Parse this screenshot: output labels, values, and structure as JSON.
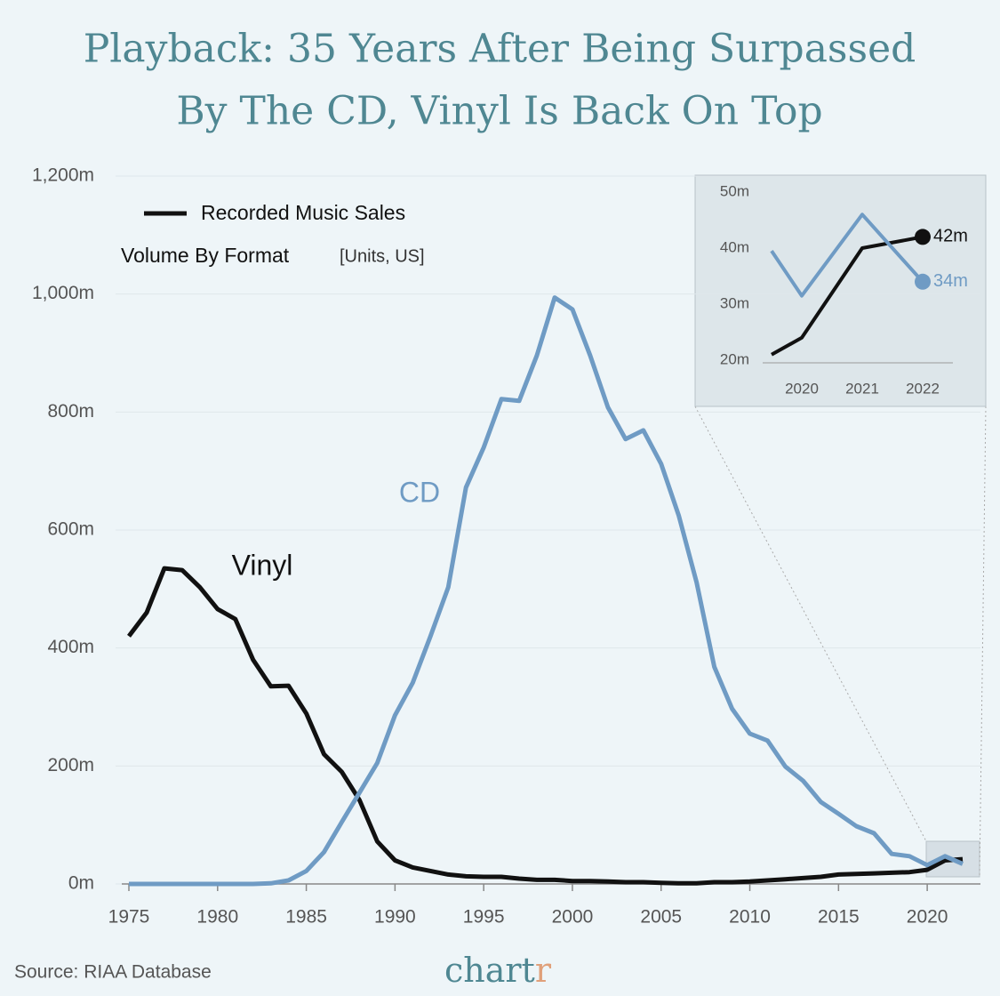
{
  "title": [
    "Playback: 35 Years After Being Surpassed",
    "By The CD, Vinyl Is Back On Top"
  ],
  "source": "Source: RIAA Database",
  "logo": {
    "text": "chart",
    "accent": "r"
  },
  "chart_data": [
    {
      "type": "line",
      "legend_label": "Recorded Music Sales",
      "subtitle": "Volume By Format",
      "units": "[Units, US]",
      "x": [
        1975,
        1976,
        1977,
        1978,
        1979,
        1980,
        1981,
        1982,
        1983,
        1984,
        1985,
        1986,
        1987,
        1988,
        1989,
        1990,
        1991,
        1992,
        1993,
        1994,
        1995,
        1996,
        1997,
        1998,
        1999,
        2000,
        2001,
        2002,
        2003,
        2004,
        2005,
        2006,
        2007,
        2008,
        2009,
        2010,
        2011,
        2012,
        2013,
        2014,
        2015,
        2016,
        2017,
        2018,
        2019,
        2020,
        2021,
        2022
      ],
      "series": [
        {
          "name": "Vinyl",
          "color": "#111111",
          "values": [
            420,
            460,
            535,
            532,
            503,
            466,
            449,
            380,
            335,
            336,
            289,
            220,
            190,
            142,
            72,
            40,
            28,
            22,
            16,
            13,
            12,
            12,
            9,
            7,
            7,
            5,
            5,
            4,
            3,
            3,
            2,
            1,
            1,
            3,
            3,
            4,
            6,
            8,
            10,
            12,
            16,
            17,
            18,
            19,
            20,
            24,
            40,
            42
          ]
        },
        {
          "name": "CD",
          "color": "#6f9bc4",
          "values": [
            0,
            0,
            0,
            0,
            0,
            0,
            0,
            0,
            1,
            6,
            22,
            54,
            105,
            155,
            205,
            286,
            341,
            420,
            503,
            672,
            740,
            822,
            819,
            896,
            994,
            974,
            896,
            808,
            754,
            769,
            712,
            624,
            511,
            368,
            297,
            255,
            243,
            199,
            175,
            139,
            119,
            98,
            86,
            51,
            47,
            32,
            47,
            34
          ]
        }
      ],
      "xlim": [
        1975,
        2023
      ],
      "xticks": [
        1975,
        1980,
        1985,
        1990,
        1995,
        2000,
        2005,
        2010,
        2015,
        2020
      ],
      "ylim": [
        0,
        1200
      ],
      "yticks": [
        {
          "value": 0,
          "label": "0m"
        },
        {
          "value": 200,
          "label": "200m"
        },
        {
          "value": 400,
          "label": "400m"
        },
        {
          "value": 600,
          "label": "600m"
        },
        {
          "value": 800,
          "label": "800m"
        },
        {
          "value": 1000,
          "label": "1,000m"
        },
        {
          "value": 1200,
          "label": "1,200m"
        }
      ],
      "grid": true
    },
    {
      "type": "line",
      "x": [
        2019.5,
        2020,
        2021,
        2022
      ],
      "series": [
        {
          "name": "Vinyl",
          "color": "#111111",
          "values": [
            21,
            24,
            40,
            42
          ],
          "value_labels": [
            null,
            null,
            null,
            "42m"
          ]
        },
        {
          "name": "CD",
          "color": "#6f9bc4",
          "values": [
            39.5,
            31.5,
            46,
            34
          ],
          "value_labels": [
            null,
            null,
            null,
            "34m"
          ]
        }
      ],
      "xlim": [
        2019.5,
        2022.5
      ],
      "xticks": [
        2020,
        2021,
        2022
      ],
      "ylim": [
        20,
        50
      ],
      "yticks": [
        {
          "value": 20,
          "label": "20m"
        },
        {
          "value": 30,
          "label": "30m"
        },
        {
          "value": 40,
          "label": "40m"
        },
        {
          "value": 50,
          "label": "50m"
        }
      ],
      "grid": false
    }
  ]
}
